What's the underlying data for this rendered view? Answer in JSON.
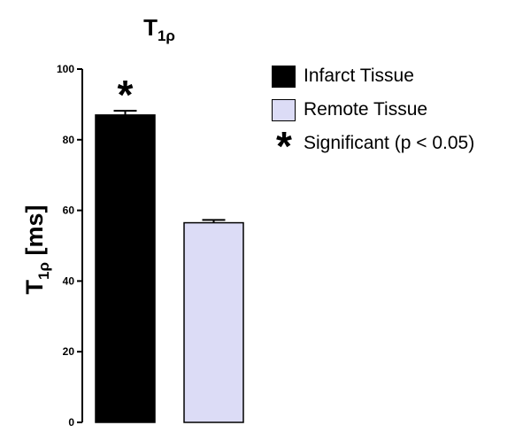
{
  "chart_data": {
    "type": "bar",
    "title": "T",
    "title_subscript": "1ρ",
    "ylabel": "T",
    "ylabel_subscript": "1ρ",
    "ylabel_unit": "[ms]",
    "ylim": [
      0,
      100
    ],
    "yticks": [
      "0",
      "20",
      "40",
      "60",
      "80",
      "100"
    ],
    "categories": [
      "Infarct Tissue",
      "Remote Tissue"
    ],
    "values": [
      87,
      56.5
    ],
    "errors": [
      1.2,
      0.8
    ],
    "colors": [
      "#000000",
      "#dcdcf6"
    ],
    "annotation": "*",
    "grid": false,
    "legend_position": "right"
  },
  "legend": {
    "items": [
      {
        "label": "Infarct Tissue",
        "color": "#000000"
      },
      {
        "label": "Remote Tissue",
        "color": "#dcdcf6"
      }
    ],
    "significance_symbol": "*",
    "significance_label": "Significant (p < 0.05)"
  }
}
